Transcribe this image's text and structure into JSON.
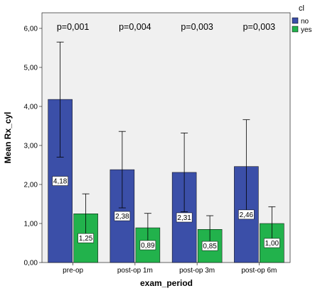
{
  "chart_data": {
    "type": "bar",
    "xlabel": "exam_period",
    "ylabel": "Mean Rx_cyl",
    "ylim": [
      0,
      6.4
    ],
    "y_ticks": [
      "0,00",
      "1,00",
      "2,00",
      "3,00",
      "4,00",
      "5,00",
      "6,00"
    ],
    "y_tick_values": [
      0,
      1,
      2,
      3,
      4,
      5,
      6
    ],
    "categories": [
      "pre-op",
      "post-op 1m",
      "post-op 3m",
      "post-op 6m"
    ],
    "legend_title": "cl",
    "legend_position": "right",
    "grid": false,
    "error_bars": true,
    "series": [
      {
        "name": "no",
        "color": "#3b4fa8",
        "values": [
          4.18,
          2.38,
          2.31,
          2.46
        ],
        "labels": [
          "4,18",
          "2,38",
          "2,31",
          "2,46"
        ],
        "err_low": [
          2.7,
          1.4,
          1.3,
          1.25
        ],
        "err_high": [
          5.65,
          3.36,
          3.32,
          3.66
        ]
      },
      {
        "name": "yes",
        "color": "#22b24c",
        "values": [
          1.25,
          0.89,
          0.85,
          1.0
        ],
        "labels": [
          "1,25",
          "0,89",
          "0,85",
          "1,00"
        ],
        "err_low": [
          0.72,
          0.52,
          0.5,
          0.56
        ],
        "err_high": [
          1.76,
          1.26,
          1.2,
          1.43
        ]
      }
    ],
    "annotations": [
      "p=0,001",
      "p=0,004",
      "p=0,003",
      "p=0,003"
    ]
  }
}
